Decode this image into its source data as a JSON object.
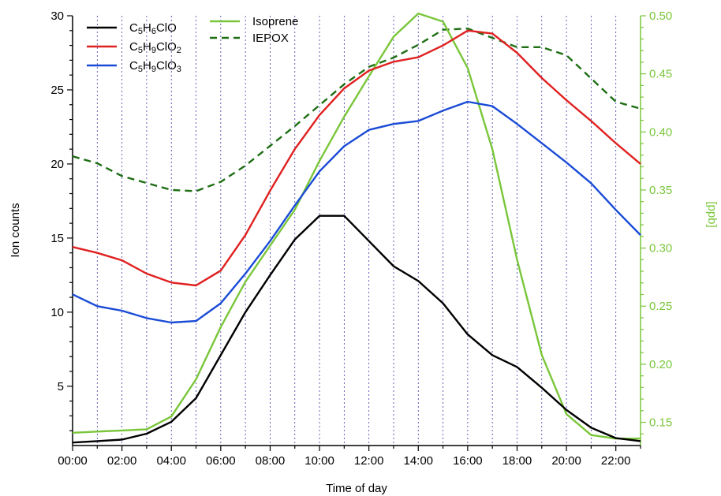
{
  "chart_data": {
    "type": "line",
    "x": [
      0,
      1,
      2,
      3,
      4,
      5,
      6,
      7,
      8,
      9,
      10,
      11,
      12,
      13,
      14,
      15,
      16,
      17,
      18,
      19,
      20,
      21,
      22,
      23
    ],
    "x_tick_labels": [
      "00:00",
      "02:00",
      "04:00",
      "06:00",
      "08:00",
      "10:00",
      "12:00",
      "14:00",
      "16:00",
      "18:00",
      "20:00",
      "22:00"
    ],
    "x_tick_values": [
      0,
      2,
      4,
      6,
      8,
      10,
      12,
      14,
      16,
      18,
      20,
      22
    ],
    "xlabel": "Time of day",
    "ylabel_left": "Ion counts",
    "ylabel_right": "[ppb]",
    "ylim_left": [
      1,
      30
    ],
    "ylim_right": [
      0.13,
      0.5
    ],
    "y_ticks_left": [
      5,
      10,
      15,
      20,
      25,
      30
    ],
    "y_ticks_right": [
      0.15,
      0.2,
      0.25,
      0.3,
      0.35,
      0.4,
      0.45,
      0.5
    ],
    "y_tick_labels_left": [
      "5",
      "10",
      "15",
      "20",
      "25",
      "30"
    ],
    "y_tick_labels_right": [
      "0.15",
      "0.20",
      "0.25",
      "0.30",
      "0.35",
      "0.40",
      "0.45",
      "0.50"
    ],
    "vertical_gridlines": true,
    "legend_placement": "top-left",
    "series": [
      {
        "name": "C5H6ClO",
        "name_parts": [
          [
            "C",
            ""
          ],
          [
            "5",
            "sub"
          ],
          [
            "H",
            ""
          ],
          [
            "6",
            "sub"
          ],
          [
            "ClO",
            ""
          ]
        ],
        "axis": "left",
        "color": "#000000",
        "style": "solid",
        "values": [
          1.2,
          1.3,
          1.4,
          1.8,
          2.6,
          4.2,
          7.1,
          10.0,
          12.5,
          14.9,
          16.5,
          16.5,
          14.8,
          13.1,
          12.1,
          10.6,
          8.5,
          7.1,
          6.3,
          4.9,
          3.4,
          2.2,
          1.5,
          1.3
        ]
      },
      {
        "name": "C5H9ClO2",
        "name_parts": [
          [
            "C",
            ""
          ],
          [
            "5",
            "sub"
          ],
          [
            "H",
            ""
          ],
          [
            "9",
            "sub"
          ],
          [
            "ClO",
            ""
          ],
          [
            "2",
            "sub"
          ]
        ],
        "axis": "left",
        "color": "#e02020",
        "style": "solid",
        "values": [
          14.4,
          14.0,
          13.5,
          12.6,
          12.0,
          11.8,
          12.8,
          15.2,
          18.2,
          21.0,
          23.3,
          25.1,
          26.3,
          26.9,
          27.2,
          28.0,
          29.0,
          28.8,
          27.5,
          25.8,
          24.3,
          22.9,
          21.4,
          20.0
        ]
      },
      {
        "name": "C5H9ClO3",
        "name_parts": [
          [
            "C",
            ""
          ],
          [
            "5",
            "sub"
          ],
          [
            "H",
            ""
          ],
          [
            "9",
            "sub"
          ],
          [
            "ClO",
            ""
          ],
          [
            "3",
            "sub"
          ]
        ],
        "axis": "left",
        "color": "#1a4bd6",
        "style": "solid",
        "values": [
          11.2,
          10.4,
          10.1,
          9.6,
          9.3,
          9.4,
          10.6,
          12.6,
          14.8,
          17.2,
          19.5,
          21.2,
          22.3,
          22.7,
          22.9,
          23.6,
          24.2,
          23.9,
          22.7,
          21.4,
          20.1,
          18.7,
          16.9,
          15.2
        ]
      },
      {
        "name": "Isoprene",
        "axis": "right",
        "color": "#7ac63a",
        "style": "solid",
        "values": [
          0.141,
          0.142,
          0.143,
          0.144,
          0.155,
          0.187,
          0.232,
          0.271,
          0.302,
          0.333,
          0.375,
          0.413,
          0.448,
          0.482,
          0.502,
          0.495,
          0.455,
          0.385,
          0.29,
          0.208,
          0.157,
          0.139,
          0.136,
          0.136
        ]
      },
      {
        "name": "IEPOX",
        "axis": "right",
        "color": "#1e6e14",
        "style": "dashed",
        "values": [
          0.379,
          0.373,
          0.362,
          0.356,
          0.35,
          0.349,
          0.357,
          0.371,
          0.388,
          0.405,
          0.423,
          0.441,
          0.456,
          0.464,
          0.475,
          0.488,
          0.489,
          0.481,
          0.473,
          0.473,
          0.466,
          0.446,
          0.426,
          0.42
        ]
      }
    ]
  }
}
